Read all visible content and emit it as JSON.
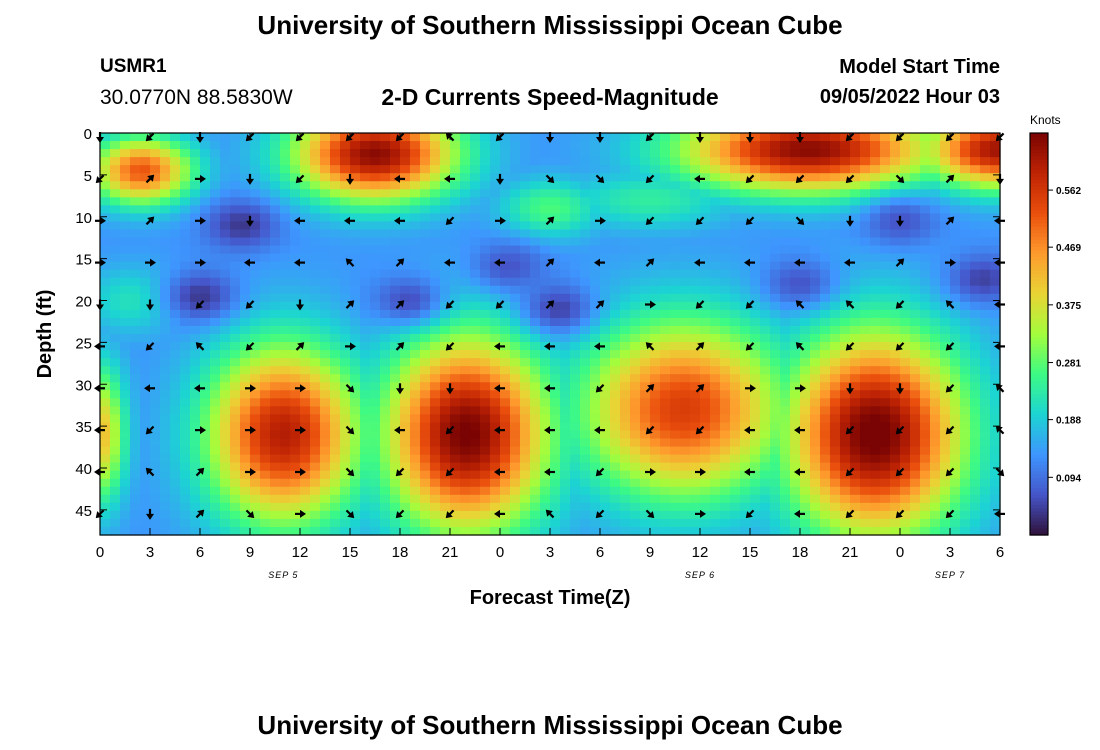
{
  "header": {
    "title": "University of Southern Mississippi Ocean Cube",
    "station": "USMR1",
    "coords": "30.0770N  88.5830W",
    "subtitle": "2-D Currents Speed-Magnitude",
    "model_start_label": "Model Start Time",
    "model_start_value": "09/05/2022 Hour 03"
  },
  "footer": {
    "title": "University of Southern Mississippi Ocean Cube"
  },
  "colorbar": {
    "units": "Knots",
    "ticks": [
      "0.094",
      "0.188",
      "0.281",
      "0.375",
      "0.469",
      "0.562"
    ],
    "tick_values": [
      0.094,
      0.188,
      0.281,
      0.375,
      0.469,
      0.562
    ],
    "range": [
      0.0,
      0.655
    ]
  },
  "chart_data": {
    "type": "heatmap",
    "title": "2-D Currents Speed-Magnitude",
    "xlabel": "Forecast Time(Z)",
    "ylabel": "Depth (ft)",
    "x_tick_labels": [
      "0",
      "3",
      "6",
      "9",
      "12",
      "15",
      "18",
      "21",
      "0",
      "3",
      "6",
      "9",
      "12",
      "15",
      "18",
      "21",
      "0",
      "3",
      "6"
    ],
    "x_hours": [
      0,
      3,
      6,
      9,
      12,
      15,
      18,
      21,
      24,
      27,
      30,
      33,
      36,
      39,
      42,
      45,
      48,
      51,
      54
    ],
    "xlim": [
      0,
      54
    ],
    "date_labels": [
      {
        "text": "SEP 5",
        "hour": 11
      },
      {
        "text": "SEP 6",
        "hour": 36
      },
      {
        "text": "SEP 7",
        "hour": 51
      }
    ],
    "y_ticks": [
      "0",
      "5",
      "10",
      "15",
      "20",
      "25",
      "30",
      "35",
      "40",
      "45"
    ],
    "y_values": [
      0,
      5,
      10,
      15,
      20,
      25,
      30,
      35,
      40,
      45
    ],
    "ylim": [
      0,
      48
    ],
    "y_inverted": true,
    "colormap": "turbo",
    "value_units": "Knots",
    "background_speed": 0.13,
    "speed_blobs": [
      {
        "hour": 16.5,
        "depth": 2.5,
        "speed": 0.64,
        "spread_h": 4.8,
        "spread_d": 5.5
      },
      {
        "hour": 2.5,
        "depth": 4.5,
        "speed": 0.52,
        "spread_h": 3.0,
        "spread_d": 4.0
      },
      {
        "hour": 42.5,
        "depth": 2.0,
        "speed": 0.64,
        "spread_h": 7.5,
        "spread_d": 5.0
      },
      {
        "hour": 54.0,
        "depth": 2.0,
        "speed": 0.62,
        "spread_h": 4.5,
        "spread_d": 4.5
      },
      {
        "hour": 11.0,
        "depth": 36.0,
        "speed": 0.6,
        "spread_h": 4.5,
        "spread_d": 10.5
      },
      {
        "hour": 22.0,
        "depth": 36.0,
        "speed": 0.66,
        "spread_h": 4.8,
        "spread_d": 11.5
      },
      {
        "hour": 35.0,
        "depth": 33.0,
        "speed": 0.55,
        "spread_h": 6.0,
        "spread_d": 10.5
      },
      {
        "hour": 46.5,
        "depth": 36.0,
        "speed": 0.67,
        "spread_h": 5.2,
        "spread_d": 12.0
      },
      {
        "hour": 0.0,
        "depth": 36.0,
        "speed": 0.42,
        "spread_h": 1.5,
        "spread_d": 8.0
      },
      {
        "hour": 27.0,
        "depth": 9.0,
        "speed": 0.27,
        "spread_h": 3.0,
        "spread_d": 3.5
      },
      {
        "hour": 2.0,
        "depth": 20.0,
        "speed": 0.22,
        "spread_h": 3.0,
        "spread_d": 4.0
      },
      {
        "hour": 33.0,
        "depth": 8.0,
        "speed": 0.24,
        "spread_h": 5.0,
        "spread_d": 3.5
      }
    ],
    "slow_spots": [
      {
        "hour": 6.0,
        "depth": 19.5,
        "depth_speed": 0.02
      },
      {
        "hour": 8.5,
        "depth": 11.0,
        "depth_speed": 0.02
      },
      {
        "hour": 18.5,
        "depth": 20.0,
        "depth_speed": 0.04
      },
      {
        "hour": 27.5,
        "depth": 21.0,
        "depth_speed": 0.03
      },
      {
        "hour": 53.0,
        "depth": 17.5,
        "depth_speed": 0.03
      },
      {
        "hour": 48.0,
        "depth": 10.5,
        "depth_speed": 0.05
      },
      {
        "hour": 42.0,
        "depth": 18.0,
        "depth_speed": 0.05
      },
      {
        "hour": 24.5,
        "depth": 16.0,
        "depth_speed": 0.05
      }
    ],
    "vector_grid": {
      "hours": [
        0,
        3,
        6,
        9,
        12,
        15,
        18,
        21,
        24,
        27,
        30,
        33,
        36,
        39,
        42,
        45,
        48,
        51,
        54
      ],
      "depths": [
        0,
        5,
        10,
        15,
        20,
        25,
        30,
        35,
        40,
        45
      ]
    },
    "vector_directions_deg": [
      [
        90,
        135,
        90,
        135,
        135,
        135,
        135,
        225,
        135,
        90,
        90,
        135,
        90,
        90,
        90,
        135,
        135,
        135,
        135
      ],
      [
        135,
        315,
        0,
        90,
        135,
        90,
        180,
        180,
        90,
        45,
        45,
        135,
        180,
        135,
        135,
        135,
        45,
        315,
        90
      ],
      [
        0,
        315,
        0,
        90,
        180,
        180,
        180,
        135,
        0,
        315,
        0,
        135,
        135,
        135,
        45,
        90,
        90,
        315,
        180
      ],
      [
        0,
        0,
        0,
        180,
        180,
        225,
        315,
        180,
        180,
        315,
        180,
        315,
        180,
        180,
        180,
        180,
        315,
        0,
        180
      ],
      [
        90,
        90,
        135,
        135,
        90,
        315,
        315,
        135,
        135,
        315,
        315,
        0,
        135,
        135,
        225,
        225,
        135,
        225,
        180
      ],
      [
        180,
        135,
        225,
        135,
        315,
        0,
        315,
        135,
        180,
        180,
        180,
        225,
        315,
        135,
        225,
        135,
        135,
        135,
        180
      ],
      [
        180,
        180,
        180,
        0,
        0,
        45,
        90,
        90,
        180,
        180,
        135,
        315,
        315,
        0,
        0,
        90,
        90,
        135,
        225
      ],
      [
        180,
        135,
        0,
        0,
        0,
        45,
        180,
        135,
        180,
        180,
        180,
        135,
        135,
        180,
        180,
        135,
        135,
        135,
        225
      ],
      [
        180,
        225,
        315,
        0,
        0,
        45,
        135,
        135,
        180,
        180,
        135,
        0,
        0,
        180,
        180,
        135,
        135,
        135,
        45
      ],
      [
        135,
        90,
        315,
        45,
        0,
        45,
        135,
        135,
        180,
        225,
        135,
        45,
        0,
        135,
        180,
        135,
        135,
        135,
        180
      ]
    ]
  }
}
